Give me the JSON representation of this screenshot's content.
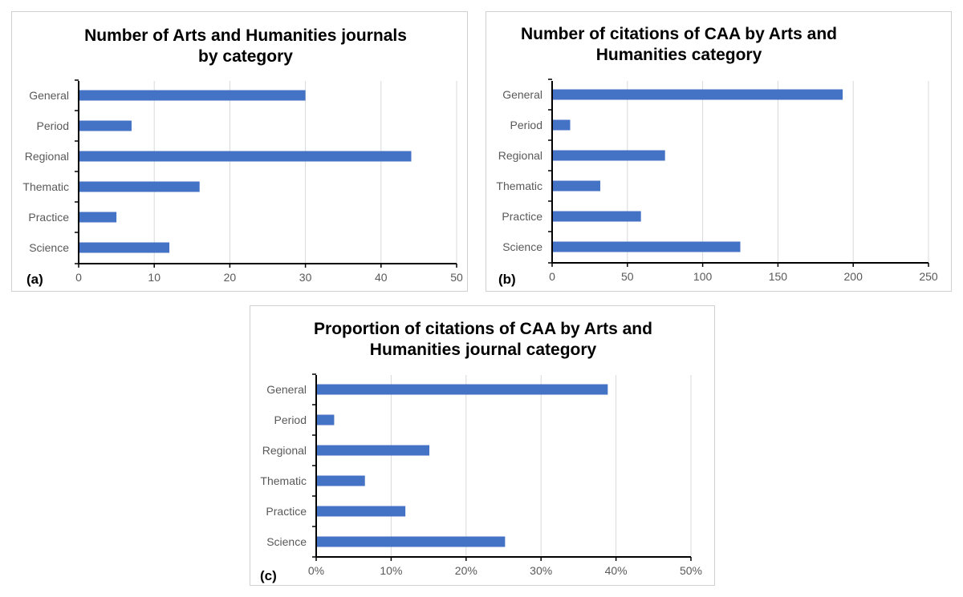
{
  "chart_data": [
    {
      "type": "bar",
      "orientation": "horizontal",
      "panel_label": "(a)",
      "title": [
        "Number of Arts and Humanities journals",
        "by category"
      ],
      "categories": [
        "General",
        "Period",
        "Regional",
        "Thematic",
        "Practice",
        "Science"
      ],
      "values": [
        30,
        7,
        44,
        16,
        5,
        12
      ],
      "xlim": [
        0,
        50
      ],
      "xticks": [
        "0",
        "10",
        "20",
        "30",
        "40",
        "50"
      ],
      "xtick_values": [
        0,
        10,
        20,
        30,
        40,
        50
      ],
      "grid": "vertical",
      "legend": "none",
      "color": "#4472c4"
    },
    {
      "type": "bar",
      "orientation": "horizontal",
      "panel_label": "(b)",
      "title": [
        "Number of citations of CAA by Arts and",
        "Humanities category"
      ],
      "categories": [
        "General",
        "Period",
        "Regional",
        "Thematic",
        "Practice",
        "Science"
      ],
      "values": [
        193,
        12,
        75,
        32,
        59,
        125
      ],
      "xlim": [
        0,
        250
      ],
      "xticks": [
        "0",
        "50",
        "100",
        "150",
        "200",
        "250"
      ],
      "xtick_values": [
        0,
        50,
        100,
        150,
        200,
        250
      ],
      "grid": "vertical",
      "legend": "none",
      "color": "#4472c4"
    },
    {
      "type": "bar",
      "orientation": "horizontal",
      "panel_label": "(c)",
      "title": [
        "Proportion of citations of CAA by Arts and",
        "Humanities journal category"
      ],
      "categories": [
        "General",
        "Period",
        "Regional",
        "Thematic",
        "Practice",
        "Science"
      ],
      "values": [
        38.9,
        2.4,
        15.1,
        6.5,
        11.9,
        25.2
      ],
      "xlim": [
        0,
        50
      ],
      "xticks": [
        "0%",
        "10%",
        "20%",
        "30%",
        "40%",
        "50%"
      ],
      "xtick_values": [
        0,
        10,
        20,
        30,
        40,
        50
      ],
      "grid": "vertical",
      "legend": "none",
      "color": "#4472c4"
    }
  ]
}
